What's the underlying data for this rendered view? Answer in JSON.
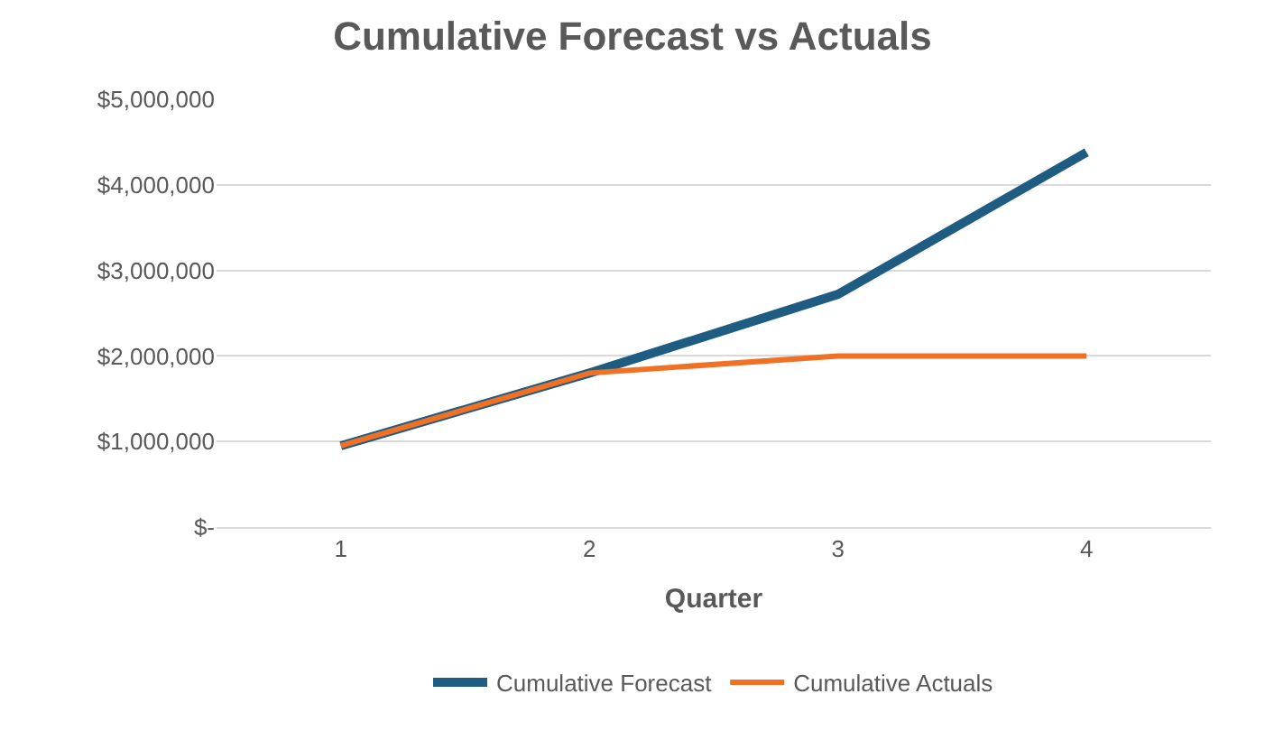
{
  "chart_data": {
    "type": "line",
    "title": "Cumulative Forecast vs Actuals",
    "xlabel": "Quarter",
    "categories": [
      "1",
      "2",
      "3",
      "4"
    ],
    "series": [
      {
        "name": "Cumulative Forecast",
        "color": "#1f5c82",
        "values": [
          950000,
          1800000,
          2720000,
          4380000
        ]
      },
      {
        "name": "Cumulative Actuals",
        "color": "#f07125",
        "values": [
          950000,
          1800000,
          2000000,
          2000000
        ]
      }
    ],
    "ylim": [
      0,
      5000000
    ],
    "yticks": [
      {
        "value": 0,
        "label": "$-"
      },
      {
        "value": 1000000,
        "label": "$1,000,000"
      },
      {
        "value": 2000000,
        "label": "$2,000,000"
      },
      {
        "value": 3000000,
        "label": "$3,000,000"
      },
      {
        "value": 4000000,
        "label": "$4,000,000"
      },
      {
        "value": 5000000,
        "label": "$5,000,000"
      }
    ],
    "grid": "y",
    "legend": "bottom",
    "marker": "none",
    "line_style": "solid"
  }
}
